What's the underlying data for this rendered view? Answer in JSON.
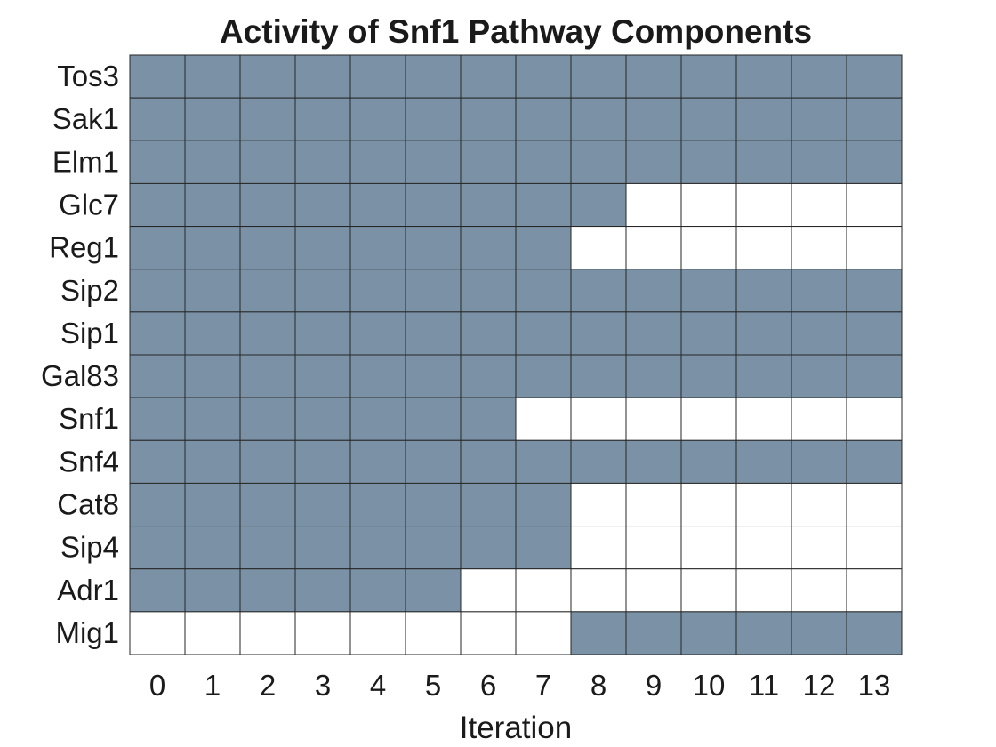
{
  "chart_data": {
    "type": "heatmap",
    "title": "Activity of Snf1 Pathway Components",
    "xlabel": "Iteration",
    "ylabel": "",
    "x": [
      "0",
      "1",
      "2",
      "3",
      "4",
      "5",
      "6",
      "7",
      "8",
      "9",
      "10",
      "11",
      "12",
      "13"
    ],
    "y": [
      "Tos3",
      "Sak1",
      "Elm1",
      "Glc7",
      "Reg1",
      "Sip2",
      "Sip1",
      "Gal83",
      "Snf1",
      "Snf4",
      "Cat8",
      "Sip4",
      "Adr1",
      "Mig1"
    ],
    "values": [
      [
        1,
        1,
        1,
        1,
        1,
        1,
        1,
        1,
        1,
        1,
        1,
        1,
        1,
        1
      ],
      [
        1,
        1,
        1,
        1,
        1,
        1,
        1,
        1,
        1,
        1,
        1,
        1,
        1,
        1
      ],
      [
        1,
        1,
        1,
        1,
        1,
        1,
        1,
        1,
        1,
        1,
        1,
        1,
        1,
        1
      ],
      [
        1,
        1,
        1,
        1,
        1,
        1,
        1,
        1,
        1,
        0,
        0,
        0,
        0,
        0
      ],
      [
        1,
        1,
        1,
        1,
        1,
        1,
        1,
        1,
        0,
        0,
        0,
        0,
        0,
        0
      ],
      [
        1,
        1,
        1,
        1,
        1,
        1,
        1,
        1,
        1,
        1,
        1,
        1,
        1,
        1
      ],
      [
        1,
        1,
        1,
        1,
        1,
        1,
        1,
        1,
        1,
        1,
        1,
        1,
        1,
        1
      ],
      [
        1,
        1,
        1,
        1,
        1,
        1,
        1,
        1,
        1,
        1,
        1,
        1,
        1,
        1
      ],
      [
        1,
        1,
        1,
        1,
        1,
        1,
        1,
        0,
        0,
        0,
        0,
        0,
        0,
        0
      ],
      [
        1,
        1,
        1,
        1,
        1,
        1,
        1,
        1,
        1,
        1,
        1,
        1,
        1,
        1
      ],
      [
        1,
        1,
        1,
        1,
        1,
        1,
        1,
        1,
        0,
        0,
        0,
        0,
        0,
        0
      ],
      [
        1,
        1,
        1,
        1,
        1,
        1,
        1,
        1,
        0,
        0,
        0,
        0,
        0,
        0
      ],
      [
        1,
        1,
        1,
        1,
        1,
        1,
        0,
        0,
        0,
        0,
        0,
        0,
        0,
        0
      ],
      [
        0,
        0,
        0,
        0,
        0,
        0,
        0,
        0,
        1,
        1,
        1,
        1,
        1,
        1
      ]
    ],
    "colors": {
      "active": "#7b92a6",
      "inactive": "#ffffff",
      "grid": "#262626"
    },
    "grid": true
  }
}
